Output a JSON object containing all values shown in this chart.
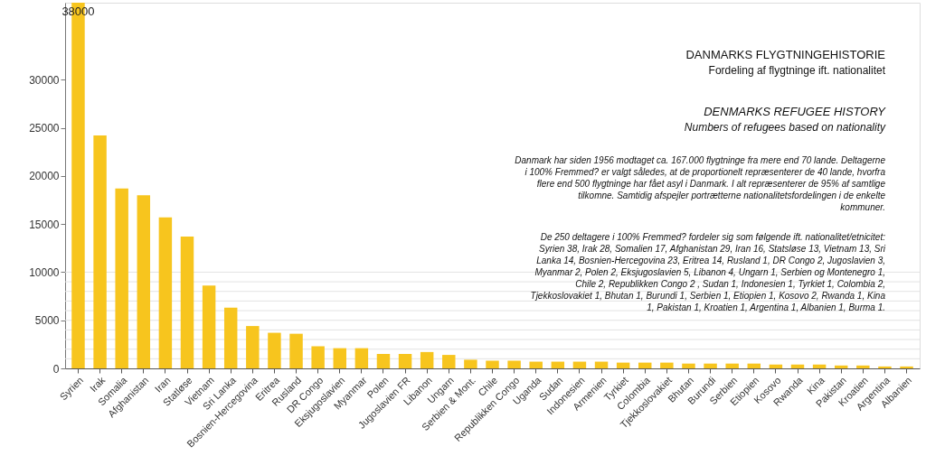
{
  "chart_data": {
    "type": "bar",
    "title": "DANMARKS FLYGTNINGEHISTORIE",
    "subtitle": "Fordeling af flygtninge ift. nationalitet",
    "categories": [
      "Syrien",
      "Irak",
      "Somalia",
      "Afghanistan",
      "Iran",
      "Statløse",
      "Vietnam",
      "Sri Lanka",
      "Bosnien-Hercegovina",
      "Eritrea",
      "Rusland",
      "DR Congo",
      "Eksjugoslavien",
      "Myanmar",
      "Polen",
      "Jugoslavien FR",
      "Libanon",
      "Ungarn",
      "Serbien & Mont.",
      "Chile",
      "Republikken Congo",
      "Uganda",
      "Sudan",
      "Indonesien",
      "Armenien",
      "Tyrkiet",
      "Colombia",
      "Tjekkoslovakiet",
      "Bhutan",
      "Burundi",
      "Serbien",
      "Etiopien",
      "Kosovo",
      "Rwanda",
      "Kina",
      "Pakistan",
      "Kroatien",
      "Argentina",
      "Albanien"
    ],
    "values": [
      38000,
      24200,
      18700,
      18000,
      15700,
      13700,
      8600,
      6300,
      4400,
      3700,
      3600,
      2300,
      2100,
      2100,
      1500,
      1500,
      1700,
      1400,
      900,
      800,
      800,
      700,
      700,
      700,
      700,
      600,
      600,
      600,
      500,
      500,
      500,
      500,
      400,
      400,
      400,
      300,
      300,
      200,
      200
    ],
    "value_labels": [
      "38000",
      null,
      null,
      null,
      null,
      null,
      null,
      null,
      null,
      null,
      null,
      null,
      null,
      null,
      null,
      null,
      null,
      null,
      null,
      null,
      null,
      null,
      null,
      null,
      null,
      null,
      null,
      null,
      null,
      null,
      null,
      null,
      null,
      null,
      null,
      null,
      null,
      null,
      null
    ],
    "color": "#f7c51e",
    "ylim": [
      0,
      38000
    ],
    "yticks": [
      0,
      5000,
      10000,
      15000,
      20000,
      25000,
      30000
    ],
    "ref_lines": [
      {
        "axis": "y",
        "value": 1000,
        "color": "#e3e3e3"
      },
      {
        "axis": "y",
        "value": 2000,
        "color": "#e3e3e3"
      },
      {
        "axis": "y",
        "value": 3000,
        "color": "#e3e3e3"
      },
      {
        "axis": "y",
        "value": 4000,
        "color": "#e3e3e3"
      },
      {
        "axis": "y",
        "value": 5000,
        "color": "#e3e3e3"
      },
      {
        "axis": "y",
        "value": 6000,
        "color": "#e3e3e3"
      },
      {
        "axis": "y",
        "value": 7000,
        "color": "#e3e3e3"
      },
      {
        "axis": "y",
        "value": 8000,
        "color": "#e3e3e3"
      },
      {
        "axis": "y",
        "value": 9000,
        "color": "#e3e3e3"
      },
      {
        "axis": "y",
        "value": 10000,
        "color": "#e3e3e3"
      }
    ],
    "annotations": [
      "DENMARKS REFUGEE HISTORY",
      "Numbers of refugees based on nationality",
      "Danmark har siden 1956 modtaget ca. 167.000 flygtninge fra mere end 70 lande. Deltagerne i 100% Fremmed? er valgt således, at de proportionelt repræsenterer de 40 lande, hvorfra flere end 500 flygtninge har fået asyl i Danmark. I alt repræsenterer de 95% af samtlige tilkomne. Samtidig afspejler portrætterne nationalitetsfordelingen i de enkelte kommuner.",
      "De 250 deltagere i 100% Fremmed? fordeler sig som følgende ift. nationalitet/etnicitet: Syrien 38, Irak 28, Somalien 17, Afghanistan 29, Iran 16, Statsløse 13, Vietnam 13, Sri Lanka 14, Bosnien-Hercegovina 23, Eritrea 14, Rusland 1, DR Congo 2, Jugoslavien 3, Myanmar 2, Polen 2, Eksjugoslavien 5, Libanon 4, Ungarn 1, Serbien og Montenegro 1, Chile 2, Republikken Congo 2 , Sudan 1, Indonesien 1, Tyrkiet 1, Colombia 2, Tjekkoslovakiet 1,  Bhutan 1, Burundi 1, Serbien 1, Etiopien 1, Kosovo 2, Rwanda 1, Kina 1, Pakistan 1, Kroatien 1, Argentina 1, Albanien 1, Burma 1."
    ]
  }
}
